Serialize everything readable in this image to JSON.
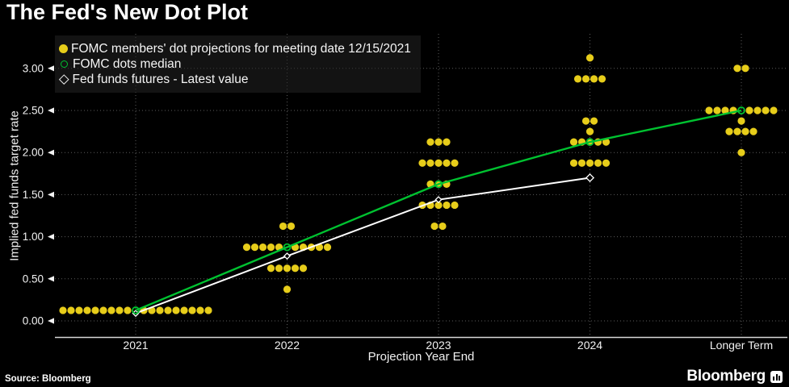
{
  "title": "The Fed's New Dot Plot",
  "legend": {
    "items": [
      {
        "marker": "yellow-dot",
        "label": "FOMC members' dot projections for meeting date 12/15/2021"
      },
      {
        "marker": "green-circle",
        "label": "FOMC dots median"
      },
      {
        "marker": "white-diamond",
        "label": "Fed funds futures - Latest value"
      }
    ]
  },
  "footer": {
    "source": "Source: Bloomberg",
    "brand": "Bloomberg"
  },
  "colors": {
    "background": "#000000",
    "dot_yellow": "#e7cd1a",
    "median_green": "#00c230",
    "futures_white": "#ffffff",
    "grid": "#5c5c5c",
    "axis": "#d8d8d8",
    "text": "#f2f2f2"
  },
  "chart_data": {
    "type": "scatter",
    "title": "The Fed's New Dot Plot",
    "xlabel": "Projection Year End",
    "ylabel": "Implied fed funds target rate",
    "categories": [
      "2021",
      "2022",
      "2023",
      "2024",
      "Longer Term"
    ],
    "y_ticks": [
      "0.00",
      "0.50",
      "1.00",
      "1.50",
      "2.00",
      "2.50",
      "3.00"
    ],
    "ylim": [
      0,
      3.4
    ],
    "grid": true,
    "legend_position": "top-left",
    "dot_series": {
      "name": "FOMC members' dot projections for meeting date 12/15/2021",
      "groups": [
        {
          "category": "2021",
          "rows": [
            {
              "value": 0.125,
              "count": 18
            }
          ]
        },
        {
          "category": "2022",
          "rows": [
            {
              "value": 1.125,
              "count": 2
            },
            {
              "value": 0.875,
              "count": 10
            },
            {
              "value": 0.625,
              "count": 5
            },
            {
              "value": 0.375,
              "count": 1
            }
          ]
        },
        {
          "category": "2023",
          "rows": [
            {
              "value": 2.125,
              "count": 3
            },
            {
              "value": 1.875,
              "count": 5
            },
            {
              "value": 1.625,
              "count": 3
            },
            {
              "value": 1.375,
              "count": 5
            },
            {
              "value": 1.125,
              "count": 2
            }
          ]
        },
        {
          "category": "2024",
          "rows": [
            {
              "value": 3.125,
              "count": 1
            },
            {
              "value": 2.875,
              "count": 4
            },
            {
              "value": 2.375,
              "count": 2
            },
            {
              "value": 2.25,
              "count": 1
            },
            {
              "value": 2.125,
              "count": 5
            },
            {
              "value": 1.875,
              "count": 5
            }
          ]
        },
        {
          "category": "Longer Term",
          "rows": [
            {
              "value": 3.0,
              "count": 2
            },
            {
              "value": 2.5,
              "count": 8
            },
            {
              "value": 2.375,
              "count": 1
            },
            {
              "value": 2.25,
              "count": 4
            },
            {
              "value": 2.0,
              "count": 1
            }
          ]
        }
      ]
    },
    "series": [
      {
        "name": "FOMC dots median",
        "type": "line",
        "color": "#00c230",
        "x": [
          "2021",
          "2022",
          "2023",
          "2024",
          "Longer Term"
        ],
        "values": [
          0.125,
          0.875,
          1.625,
          2.125,
          2.5
        ]
      },
      {
        "name": "Fed funds futures - Latest value",
        "type": "line",
        "color": "#ffffff",
        "x": [
          "2021",
          "2022",
          "2023",
          "2024"
        ],
        "values": [
          0.09,
          0.77,
          1.44,
          1.7
        ]
      }
    ]
  }
}
